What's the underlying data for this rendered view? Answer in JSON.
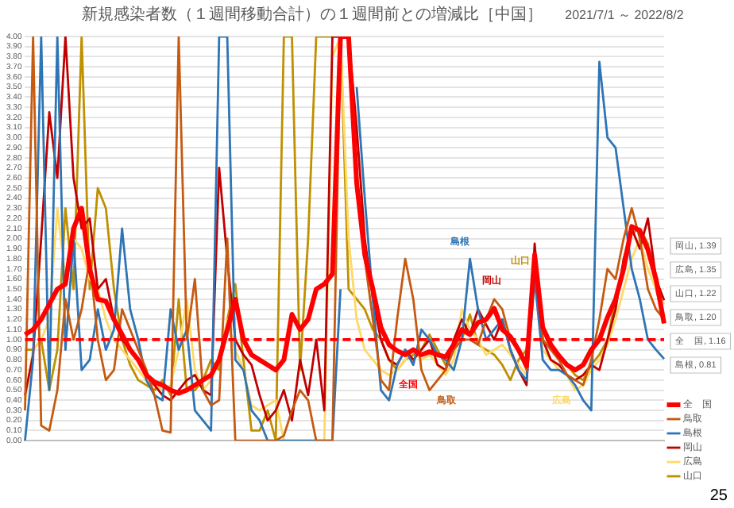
{
  "chart_data": {
    "type": "line",
    "title": "新規感染者数（１週間移動合計）の１週間前との増減比［中国］",
    "subtitle": "2021/7/1 ～ 2022/8/2",
    "categories": [
      null,
      null,
      null,
      null,
      null,
      null,
      null,
      null,
      null,
      null,
      null,
      null,
      null,
      null,
      null,
      null,
      null,
      null,
      null,
      null,
      null,
      null,
      null,
      null,
      null,
      null,
      null,
      null,
      null,
      null,
      null,
      null,
      null,
      null,
      null,
      null,
      null,
      null,
      null,
      null,
      null,
      null,
      null,
      null,
      null,
      null,
      null,
      null,
      null,
      null,
      null,
      null,
      null,
      null,
      null,
      null,
      null,
      null,
      null,
      null,
      null,
      null,
      null,
      null,
      null,
      null,
      null,
      null,
      null,
      null,
      null,
      null,
      null,
      null,
      null,
      null,
      null,
      null,
      null,
      null
    ],
    "series": [
      {
        "name": "全　国",
        "color": "#ff0000",
        "values": [
          1.05,
          1.1,
          1.2,
          1.35,
          1.5,
          1.55,
          2.1,
          2.3,
          1.7,
          1.4,
          1.38,
          1.2,
          1.05,
          0.9,
          0.8,
          0.65,
          0.58,
          0.55,
          0.5,
          0.47,
          0.5,
          0.55,
          0.6,
          0.65,
          0.8,
          1.1,
          1.4,
          1.0,
          0.85,
          0.8,
          0.75,
          0.7,
          0.8,
          1.25,
          1.1,
          1.2,
          1.5,
          1.55,
          1.65,
          4,
          4,
          2.55,
          1.84,
          1.5,
          1.12,
          0.95,
          0.89,
          0.85,
          0.9,
          0.85,
          0.88,
          0.85,
          0.83,
          0.95,
          1.1,
          1.05,
          1.17,
          1.2,
          1.31,
          1.1,
          1.03,
          0.9,
          0.74,
          1.84,
          1.12,
          0.95,
          0.84,
          0.75,
          0.7,
          0.75,
          0.9,
          1.0,
          1.22,
          1.4,
          1.7,
          2.12,
          2.08,
          1.89,
          1.6,
          1.16
        ]
      },
      {
        "name": "鳥取",
        "color": "#c55a11",
        "values": [
          0.3,
          4,
          0.15,
          0.1,
          0.5,
          1.4,
          1.0,
          1.3,
          1.8,
          1.0,
          0.6,
          0.7,
          1.3,
          1.1,
          0.9,
          0.7,
          0.45,
          0.1,
          0.08,
          4,
          1.0,
          1.6,
          0.5,
          0.35,
          0.4,
          2.0,
          0,
          0,
          0,
          0,
          0,
          0,
          0.05,
          0.3,
          0.5,
          0.4,
          0,
          0,
          0,
          4,
          4,
          2.6,
          1.8,
          1.2,
          0.6,
          0.5,
          1.2,
          1.8,
          1.4,
          0.7,
          0.5,
          0.6,
          0.7,
          0.9,
          1.0,
          1.0,
          0.95,
          1.2,
          1.4,
          1.3,
          1.0,
          0.9,
          0.7,
          1.85,
          1.0,
          0.9,
          0.8,
          0.65,
          0.6,
          0.55,
          0.8,
          1.2,
          1.7,
          1.6,
          2.0,
          2.3,
          2.0,
          1.5,
          1.3,
          1.2
        ]
      },
      {
        "name": "島根",
        "color": "#2e75b6",
        "values": [
          0,
          0.8,
          4,
          0.5,
          4,
          0.9,
          2.0,
          0.7,
          0.8,
          1.3,
          0.9,
          1.1,
          2.1,
          1.3,
          1.0,
          0.6,
          0.45,
          0.4,
          1.3,
          0.9,
          1.1,
          0.3,
          0.2,
          0.1,
          4,
          4,
          0.8,
          0.7,
          0.3,
          0.2,
          0,
          0,
          0,
          0,
          0,
          0,
          0,
          0,
          0,
          1.5,
          null,
          3.5,
          2.4,
          1.4,
          0.5,
          0.4,
          0.75,
          0.9,
          0.75,
          1.1,
          1.0,
          0.85,
          0.8,
          0.7,
          1.0,
          1.8,
          1.3,
          1.0,
          1.1,
          1.2,
          0.9,
          0.7,
          0.6,
          1.6,
          0.8,
          0.7,
          0.7,
          0.65,
          0.55,
          0.4,
          0.3,
          3.75,
          3.0,
          2.9,
          2.3,
          1.7,
          1.4,
          1.0,
          0.9,
          0.81
        ]
      },
      {
        "name": "岡山",
        "color": "#c00000",
        "values": [
          0.45,
          0.85,
          2.0,
          3.25,
          2.6,
          4,
          2.6,
          2.1,
          2.2,
          1.5,
          1.6,
          1.2,
          1.0,
          0.9,
          0.8,
          0.65,
          0.55,
          0.45,
          0.4,
          0.5,
          0.6,
          0.65,
          0.5,
          0.45,
          2.7,
          1.8,
          1.0,
          0.85,
          0.75,
          0.45,
          0.2,
          0.3,
          0.5,
          0.2,
          0.8,
          0.45,
          1.0,
          0.3,
          4,
          4,
          4,
          3.1,
          2.0,
          1.4,
          1.0,
          0.8,
          0.75,
          0.9,
          0.8,
          0.9,
          1.0,
          0.75,
          0.7,
          1.0,
          1.2,
          1.05,
          1.3,
          1.15,
          1.0,
          1.2,
          0.9,
          0.7,
          0.55,
          1.95,
          1.0,
          0.8,
          0.75,
          0.65,
          0.6,
          0.65,
          0.75,
          0.7,
          1.0,
          1.3,
          1.8,
          2.1,
          1.9,
          2.2,
          1.6,
          1.39
        ]
      },
      {
        "name": "広島",
        "color": "#ffd966",
        "values": [
          0.4,
          0.9,
          1.0,
          1.2,
          2.3,
          1.6,
          2.0,
          1.9,
          1.6,
          1.5,
          1.2,
          1.0,
          0.9,
          0.8,
          0.7,
          0.6,
          0.55,
          0.5,
          0.55,
          0.9,
          1.4,
          0.7,
          0.5,
          0.6,
          0.8,
          1.2,
          0.9,
          0.7,
          0.35,
          0.3,
          0.35,
          0.4,
          0,
          0,
          0,
          0,
          0,
          0,
          3.8,
          4,
          2.0,
          1.2,
          0.9,
          0.8,
          0.7,
          0.65,
          0.7,
          0.8,
          0.9,
          0.8,
          0.85,
          0.75,
          0.65,
          0.8,
          1.3,
          1.1,
          1.0,
          0.85,
          0.9,
          0.95,
          0.85,
          0.75,
          0.65,
          1.6,
          0.9,
          0.8,
          0.7,
          0.65,
          0.5,
          0.55,
          0.7,
          0.8,
          0.95,
          1.2,
          1.5,
          1.8,
          2.0,
          1.7,
          1.5,
          1.35
        ]
      },
      {
        "name": "山口",
        "color": "#bf9000",
        "values": [
          0.9,
          0.9,
          1.0,
          0.5,
          0.9,
          2.3,
          1.5,
          4,
          1.5,
          2.5,
          2.3,
          1.5,
          1.0,
          0.75,
          0.6,
          0.55,
          0.5,
          0.6,
          0.45,
          1.4,
          0.5,
          0.5,
          0.6,
          0.8,
          0.7,
          1.2,
          1.55,
          0.8,
          0.1,
          0.1,
          0.3,
          0,
          4,
          4,
          0.7,
          2.0,
          4,
          4,
          4,
          4,
          1.5,
          1.4,
          1.3,
          1.1,
          1.0,
          0.8,
          0.7,
          0.8,
          0.85,
          0.9,
          1.05,
          0.9,
          0.75,
          0.9,
          1.0,
          1.25,
          0.95,
          0.9,
          0.85,
          0.75,
          0.6,
          0.8,
          0.9,
          1.85,
          1.1,
          0.9,
          0.85,
          0.75,
          0.65,
          0.6,
          0.75,
          0.85,
          1.0,
          1.4,
          1.75,
          2.05,
          2.1,
          1.95,
          1.5,
          1.22
        ]
      }
    ],
    "ylim": [
      0,
      4
    ],
    "yticks": [
      {
        "value": 0,
        "label": "0.00"
      },
      {
        "value": 0.1,
        "label": "0.10"
      },
      {
        "value": 0.2,
        "label": "0.20"
      },
      {
        "value": 0.3,
        "label": "0.30"
      },
      {
        "value": 0.4,
        "label": "0.40"
      },
      {
        "value": 0.5,
        "label": "0.50"
      },
      {
        "value": 0.6,
        "label": "0.60"
      },
      {
        "value": 0.7,
        "label": "0.70"
      },
      {
        "value": 0.8,
        "label": "0.80"
      },
      {
        "value": 0.9,
        "label": "0.90"
      },
      {
        "value": 1,
        "label": "1.00"
      },
      {
        "value": 1.1,
        "label": "1.10"
      },
      {
        "value": 1.2,
        "label": "1.20"
      },
      {
        "value": 1.3,
        "label": "1.30"
      },
      {
        "value": 1.4,
        "label": "1.40"
      },
      {
        "value": 1.5,
        "label": "1.50"
      },
      {
        "value": 1.6,
        "label": "1.60"
      },
      {
        "value": 1.7,
        "label": "1.70"
      },
      {
        "value": 1.8,
        "label": "1.80"
      },
      {
        "value": 1.9,
        "label": "1.90"
      },
      {
        "value": 2,
        "label": "2.00"
      },
      {
        "value": 2.1,
        "label": "2.10"
      },
      {
        "value": 2.2,
        "label": "2.20"
      },
      {
        "value": 2.3,
        "label": "2.30"
      },
      {
        "value": 2.4,
        "label": "2.40"
      },
      {
        "value": 2.5,
        "label": "2.50"
      },
      {
        "value": 2.6,
        "label": "2.60"
      },
      {
        "value": 2.7,
        "label": "2.70"
      },
      {
        "value": 2.8,
        "label": "2.80"
      },
      {
        "value": 2.9,
        "label": "2.90"
      },
      {
        "value": 3,
        "label": "3.00"
      },
      {
        "value": 3.1,
        "label": "3.10"
      },
      {
        "value": 3.2,
        "label": "3.20"
      },
      {
        "value": 3.3,
        "label": "3.30"
      },
      {
        "value": 3.4,
        "label": "3.40"
      },
      {
        "value": 3.5,
        "label": "3.50"
      },
      {
        "value": 3.6,
        "label": "3.60"
      },
      {
        "value": 3.7,
        "label": "3.70"
      },
      {
        "value": 3.8,
        "label": "3.80"
      },
      {
        "value": 3.9,
        "label": "3.90"
      },
      {
        "value": 4,
        "label": "4.00"
      }
    ],
    "grid": "y",
    "legend": "right",
    "marker": "none",
    "line_style": "solid",
    "ref_lines": [
      {
        "axis": "y",
        "value": 1,
        "color": "#ff0000",
        "line_style": "dashed"
      }
    ],
    "annotations": [
      "岡山, 1.39",
      "広島, 1.35",
      "山口, 1.22",
      "鳥取, 1.20",
      "全　国, 1.16",
      "島根, 0.81",
      "島根",
      "岡山",
      "山口",
      "全国",
      "鳥取",
      "広島",
      "25"
    ]
  }
}
